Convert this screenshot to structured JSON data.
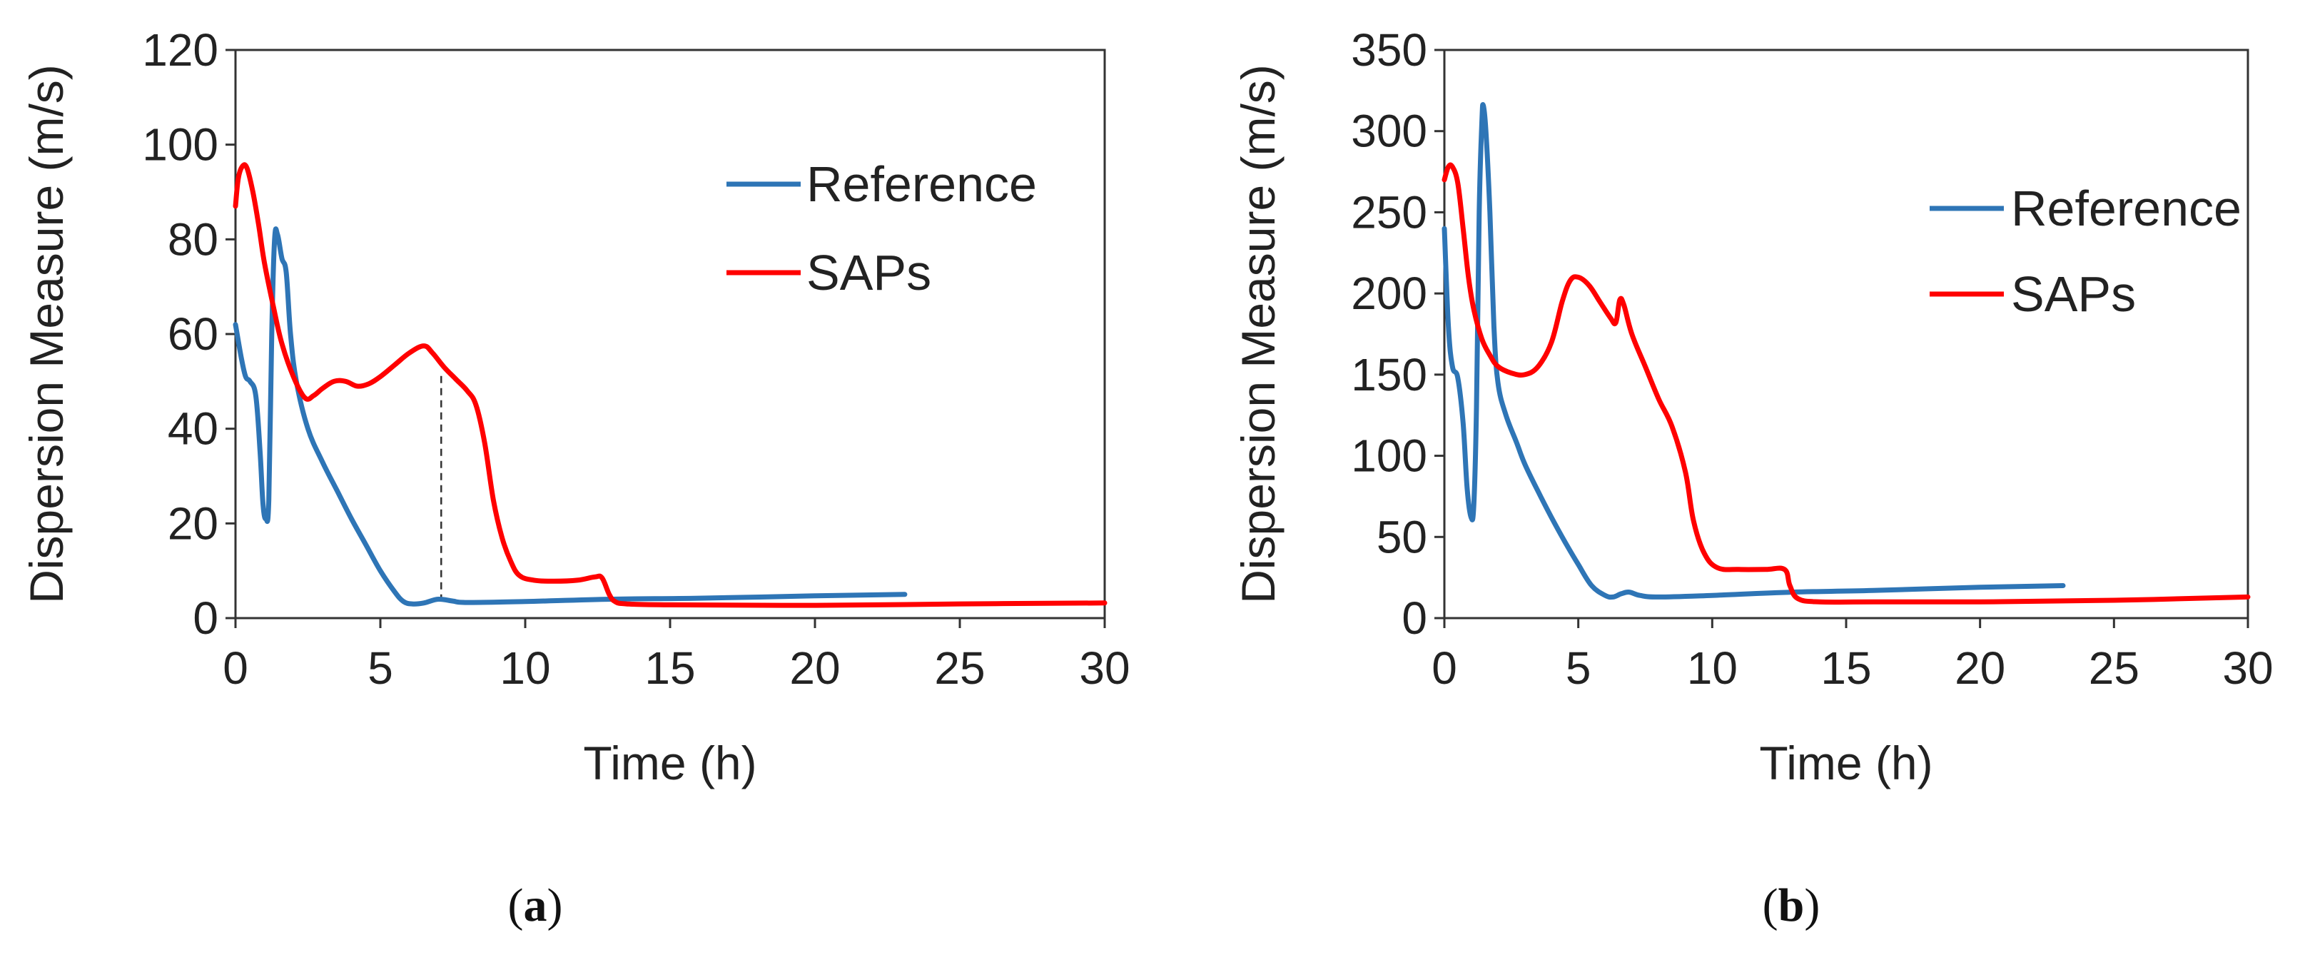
{
  "chart_data": [
    {
      "type": "line",
      "panel": "a",
      "caption_open": "(",
      "caption_letter": "a",
      "caption_close": ")",
      "xlabel": "Time (h)",
      "ylabel": "Dispersion Measure (m/s)",
      "xlim": [
        0,
        30
      ],
      "ylim": [
        0,
        120
      ],
      "xticks": [
        0,
        5,
        10,
        15,
        20,
        25,
        30
      ],
      "yticks": [
        0,
        20,
        40,
        60,
        80,
        100,
        120
      ],
      "legend_position": "top-right",
      "annotation": {
        "type": "vertical-dashed-line",
        "x": 7.1,
        "y_from": 3.5,
        "y_to": 52
      },
      "series": [
        {
          "name": "Reference",
          "color": "#2E75B6",
          "points": [
            [
              0,
              62
            ],
            [
              0.2,
              55
            ],
            [
              0.35,
              51
            ],
            [
              0.5,
              50
            ],
            [
              0.7,
              47
            ],
            [
              0.85,
              35
            ],
            [
              0.95,
              24
            ],
            [
              1.05,
              21
            ],
            [
              1.15,
              25
            ],
            [
              1.25,
              60
            ],
            [
              1.35,
              80
            ],
            [
              1.45,
              81
            ],
            [
              1.6,
              76
            ],
            [
              1.75,
              73
            ],
            [
              1.9,
              60
            ],
            [
              2.1,
              50
            ],
            [
              2.5,
              40
            ],
            [
              3,
              33
            ],
            [
              3.5,
              27
            ],
            [
              4,
              21
            ],
            [
              4.5,
              15.5
            ],
            [
              5,
              10
            ],
            [
              5.5,
              5.5
            ],
            [
              5.8,
              3.5
            ],
            [
              6.1,
              3
            ],
            [
              6.5,
              3.2
            ],
            [
              7,
              4
            ],
            [
              7.5,
              3.6
            ],
            [
              8,
              3.3
            ],
            [
              10,
              3.5
            ],
            [
              13,
              4
            ],
            [
              16,
              4.2
            ],
            [
              20,
              4.7
            ],
            [
              23.1,
              5
            ]
          ]
        },
        {
          "name": "SAPs",
          "color": "#FF0000",
          "points": [
            [
              0,
              87
            ],
            [
              0.1,
              93
            ],
            [
              0.25,
              95.5
            ],
            [
              0.4,
              95
            ],
            [
              0.6,
              90
            ],
            [
              0.8,
              83
            ],
            [
              1,
              75
            ],
            [
              1.3,
              66
            ],
            [
              1.6,
              58
            ],
            [
              2,
              51
            ],
            [
              2.4,
              46.5
            ],
            [
              2.7,
              47
            ],
            [
              3,
              48.5
            ],
            [
              3.4,
              50
            ],
            [
              3.8,
              50
            ],
            [
              4.2,
              49
            ],
            [
              4.6,
              49.5
            ],
            [
              5,
              51
            ],
            [
              5.5,
              53.5
            ],
            [
              6,
              56
            ],
            [
              6.5,
              57.5
            ],
            [
              6.8,
              56
            ],
            [
              7.2,
              53
            ],
            [
              7.6,
              50.5
            ],
            [
              8,
              48
            ],
            [
              8.3,
              45
            ],
            [
              8.6,
              37
            ],
            [
              8.9,
              25
            ],
            [
              9.2,
              17
            ],
            [
              9.5,
              12
            ],
            [
              9.8,
              9
            ],
            [
              10.3,
              8
            ],
            [
              11,
              7.8
            ],
            [
              11.8,
              8
            ],
            [
              12.4,
              8.7
            ],
            [
              12.65,
              8.5
            ],
            [
              12.9,
              5
            ],
            [
              13.1,
              3.5
            ],
            [
              13.5,
              3
            ],
            [
              15,
              2.8
            ],
            [
              20,
              2.7
            ],
            [
              25,
              3
            ],
            [
              30,
              3.2
            ]
          ]
        }
      ]
    },
    {
      "type": "line",
      "panel": "b",
      "caption_open": "(",
      "caption_letter": "b",
      "caption_close": ")",
      "xlabel": "Time (h)",
      "ylabel": "Dispersion Measure (m/s)",
      "xlim": [
        0,
        30
      ],
      "ylim": [
        0,
        350
      ],
      "xticks": [
        0,
        5,
        10,
        15,
        20,
        25,
        30
      ],
      "yticks": [
        0,
        50,
        100,
        150,
        200,
        250,
        300,
        350
      ],
      "legend_position": "top-right",
      "series": [
        {
          "name": "Reference",
          "color": "#2E75B6",
          "points": [
            [
              0,
              240
            ],
            [
              0.15,
              180
            ],
            [
              0.3,
              155
            ],
            [
              0.5,
              148
            ],
            [
              0.7,
              120
            ],
            [
              0.85,
              80
            ],
            [
              1,
              62
            ],
            [
              1.1,
              70
            ],
            [
              1.2,
              130
            ],
            [
              1.3,
              250
            ],
            [
              1.4,
              305
            ],
            [
              1.45,
              316
            ],
            [
              1.55,
              300
            ],
            [
              1.7,
              250
            ],
            [
              1.85,
              180
            ],
            [
              2,
              145
            ],
            [
              2.3,
              125
            ],
            [
              2.7,
              108
            ],
            [
              3,
              95
            ],
            [
              3.5,
              78
            ],
            [
              4,
              62
            ],
            [
              4.5,
              47
            ],
            [
              5,
              33
            ],
            [
              5.5,
              20
            ],
            [
              6,
              14
            ],
            [
              6.3,
              13
            ],
            [
              6.6,
              15
            ],
            [
              6.9,
              16
            ],
            [
              7.3,
              14
            ],
            [
              8,
              13
            ],
            [
              10,
              14
            ],
            [
              13,
              16
            ],
            [
              16,
              17
            ],
            [
              20,
              19
            ],
            [
              23.1,
              20
            ]
          ]
        },
        {
          "name": "SAPs",
          "color": "#FF0000",
          "points": [
            [
              0,
              270
            ],
            [
              0.15,
              278
            ],
            [
              0.3,
              278
            ],
            [
              0.5,
              268
            ],
            [
              0.7,
              240
            ],
            [
              0.9,
              210
            ],
            [
              1.1,
              190
            ],
            [
              1.4,
              172
            ],
            [
              1.7,
              162
            ],
            [
              2,
              155
            ],
            [
              2.5,
              151
            ],
            [
              3,
              150
            ],
            [
              3.5,
              155
            ],
            [
              4,
              170
            ],
            [
              4.4,
              195
            ],
            [
              4.7,
              208
            ],
            [
              5,
              210
            ],
            [
              5.4,
              205
            ],
            [
              5.8,
              195
            ],
            [
              6.2,
              185
            ],
            [
              6.4,
              182
            ],
            [
              6.55,
              196
            ],
            [
              6.7,
              193
            ],
            [
              7,
              175
            ],
            [
              7.5,
              155
            ],
            [
              8,
              135
            ],
            [
              8.5,
              118
            ],
            [
              9,
              90
            ],
            [
              9.3,
              60
            ],
            [
              9.7,
              40
            ],
            [
              10.2,
              31
            ],
            [
              11,
              30
            ],
            [
              12,
              30
            ],
            [
              12.7,
              30
            ],
            [
              12.9,
              20
            ],
            [
              13.2,
              12
            ],
            [
              14,
              10
            ],
            [
              16,
              10
            ],
            [
              20,
              10
            ],
            [
              25,
              11
            ],
            [
              30,
              13
            ]
          ]
        }
      ]
    }
  ]
}
